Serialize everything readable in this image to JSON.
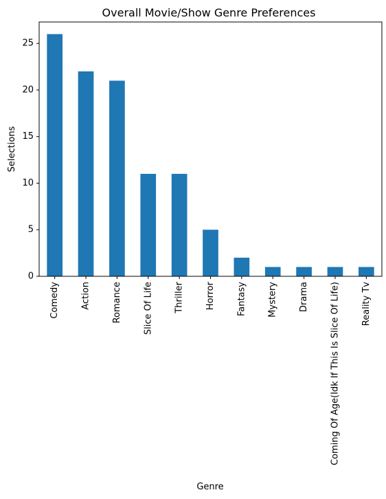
{
  "chart_data": {
    "type": "bar",
    "title": "Overall Movie/Show Genre Preferences",
    "xlabel": "Genre",
    "ylabel": "Selections",
    "categories": [
      "Comedy",
      "Action",
      "Romance",
      "Slice Of Life",
      "Thriller",
      "Horror",
      "Fantasy",
      "Mystery",
      "Drama",
      "Coming Of Age(Idk If This Is Slice Of Life)",
      "Reality Tv"
    ],
    "values": [
      26,
      22,
      21,
      11,
      11,
      5,
      2,
      1,
      1,
      1,
      1
    ],
    "ylim": [
      0,
      27.3
    ],
    "yticks": [
      0,
      5,
      10,
      15,
      20,
      25
    ],
    "grid": false,
    "legend": "none",
    "bar_color": "#1f77b4"
  }
}
